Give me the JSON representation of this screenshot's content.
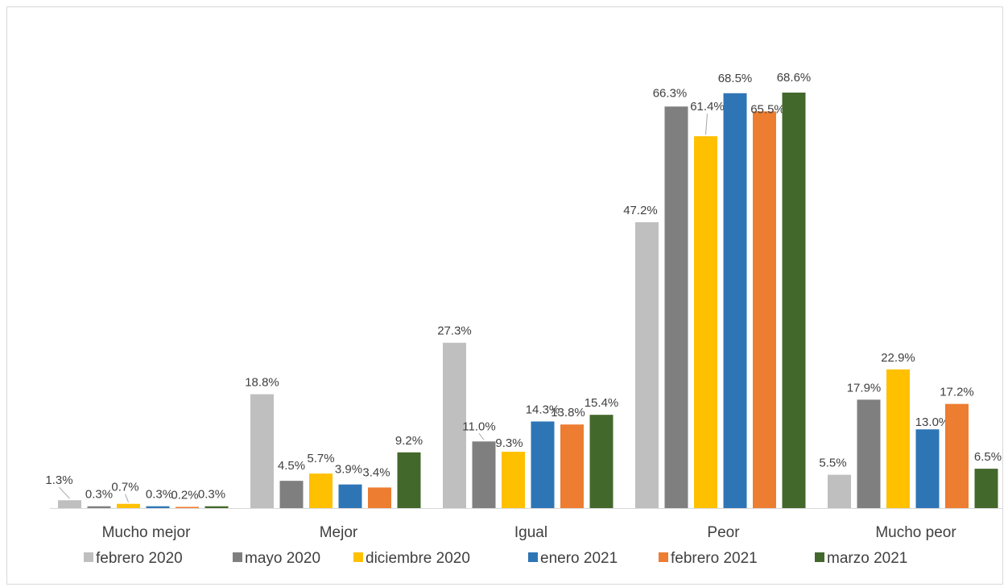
{
  "chart_data": {
    "type": "bar",
    "categories": [
      "Mucho mejor",
      "Mejor",
      "Igual",
      "Peor",
      "Mucho peor"
    ],
    "series": [
      {
        "name": "febrero 2020",
        "color": "#bfbfbf",
        "values": [
          1.3,
          18.8,
          27.3,
          47.2,
          5.5
        ]
      },
      {
        "name": "mayo 2020",
        "color": "#7f7f7f",
        "values": [
          0.3,
          4.5,
          11.0,
          66.3,
          17.9
        ]
      },
      {
        "name": "diciembre 2020",
        "color": "#ffc000",
        "values": [
          0.7,
          5.7,
          9.3,
          61.4,
          22.9
        ]
      },
      {
        "name": "enero 2021",
        "color": "#2e75b6",
        "values": [
          0.3,
          3.9,
          14.3,
          68.5,
          13.0
        ]
      },
      {
        "name": "febrero 2021",
        "color": "#ed7d31",
        "values": [
          0.2,
          3.4,
          13.8,
          65.5,
          17.2
        ]
      },
      {
        "name": "marzo 2021",
        "color": "#43682b",
        "values": [
          0.3,
          9.2,
          15.4,
          68.6,
          6.5
        ]
      }
    ],
    "data_labels": [
      [
        "1.3%",
        "18.8%",
        "27.3%",
        "47.2%",
        "5.5%"
      ],
      [
        "0.3%",
        "4.5%",
        "11.0%",
        "66.3%",
        "17.9%"
      ],
      [
        "0.7%",
        "5.7%",
        "9.3%",
        "61.4%",
        "22.9%"
      ],
      [
        "0.3%",
        "3.9%",
        "14.3%",
        "68.5%",
        "13.0%"
      ],
      [
        "0.2%",
        "3.4%",
        "13.8%",
        "65.5%",
        "17.2%"
      ],
      [
        "0.3%",
        "9.2%",
        "15.4%",
        "68.6%",
        "6.5%"
      ]
    ],
    "ylim": [
      0,
      80
    ],
    "grid": false,
    "legend": "bottom"
  }
}
